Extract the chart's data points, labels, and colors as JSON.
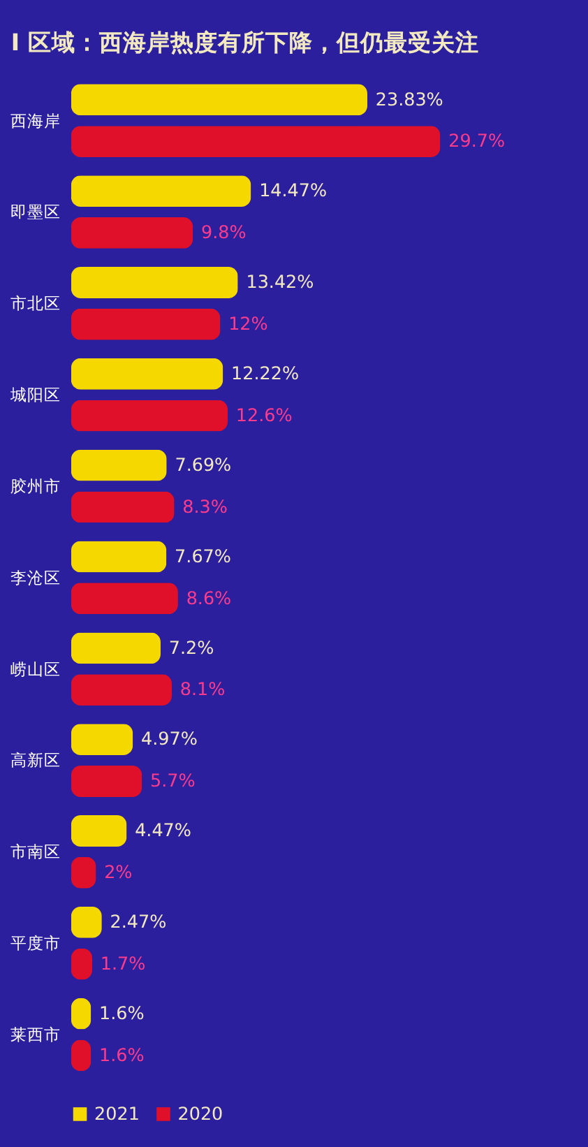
{
  "chart_data": {
    "type": "bar",
    "orientation": "horizontal",
    "title": "I  区域：西海岸热度有所下降，但仍最受关注",
    "categories": [
      "西海岸",
      "即墨区",
      "市北区",
      "城阳区",
      "胶州市",
      "李沧区",
      "崂山区",
      "高新区",
      "市南区",
      "平度市",
      "莱西市"
    ],
    "series": [
      {
        "name": "2021",
        "color": "#f5d800",
        "values": [
          23.83,
          14.47,
          13.42,
          12.22,
          7.69,
          7.67,
          7.2,
          4.97,
          4.47,
          2.47,
          1.6
        ],
        "value_labels": [
          "23.83%",
          "14.47%",
          "13.42%",
          "12.22%",
          "7.69%",
          "7.67%",
          "7.2%",
          "4.97%",
          "4.47%",
          "2.47%",
          "1.6%"
        ]
      },
      {
        "name": "2020",
        "color": "#e0102a",
        "values": [
          29.7,
          9.8,
          12,
          12.6,
          8.3,
          8.6,
          8.1,
          5.7,
          2,
          1.7,
          1.6
        ],
        "value_labels": [
          "29.7%",
          "9.8%",
          "12%",
          "12.6%",
          "8.3%",
          "8.6%",
          "8.1%",
          "5.7%",
          "2%",
          "1.7%",
          "1.6%"
        ]
      }
    ],
    "legend": "bottom",
    "grid": false
  }
}
